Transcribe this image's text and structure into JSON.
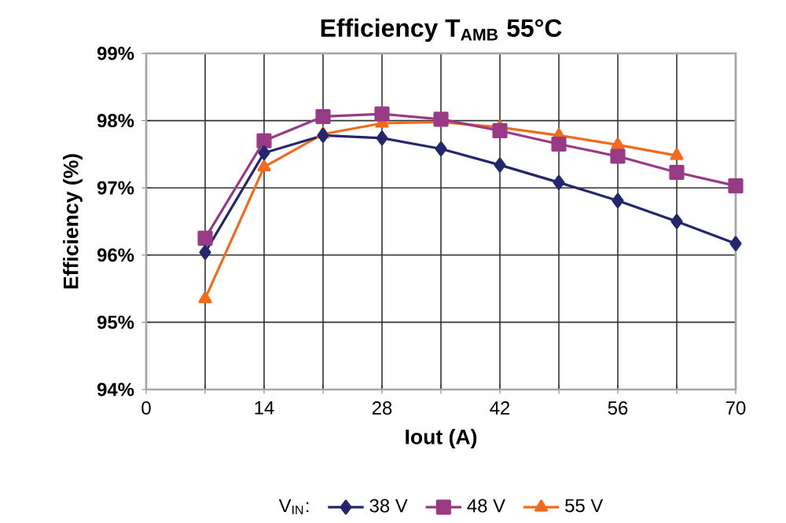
{
  "chart_data": {
    "type": "line",
    "title": "Efficiency T$_{AMB}$ 55°C",
    "xlabel": "Iout (A)",
    "ylabel": "Efficiency (%)",
    "legend_title": "V$_{IN}$:",
    "x": [
      7,
      14,
      21,
      28,
      35,
      42,
      49,
      56,
      63,
      70
    ],
    "series": [
      {
        "name": "38 V",
        "color": "#25276e",
        "marker": "diamond",
        "values": [
          96.04,
          97.52,
          97.78,
          97.74,
          97.58,
          97.34,
          97.08,
          96.81,
          96.5,
          96.17
        ]
      },
      {
        "name": "48 V",
        "color": "#993a86",
        "marker": "square",
        "values": [
          96.25,
          97.7,
          98.06,
          98.1,
          98.02,
          97.85,
          97.65,
          97.47,
          97.23,
          97.03
        ]
      },
      {
        "name": "55 V",
        "color": "#f26b1d",
        "marker": "triangle",
        "values": [
          95.35,
          97.31,
          97.8,
          97.96,
          97.98,
          97.9,
          97.78,
          97.64,
          97.48,
          null
        ]
      }
    ],
    "xlim": [
      0,
      70
    ],
    "ylim": [
      94,
      99
    ],
    "xticks": [
      0,
      {
        "value": 7,
        "label": null
      },
      14,
      {
        "value": 21,
        "label": null
      },
      28,
      {
        "value": 35,
        "label": null
      },
      42,
      {
        "value": 49,
        "label": null
      },
      56,
      {
        "value": 63,
        "label": null
      },
      70
    ],
    "yticks": [
      {
        "value": 94,
        "label": "94%"
      },
      {
        "value": 95,
        "label": "95%"
      },
      {
        "value": 96,
        "label": "96%"
      },
      {
        "value": 97,
        "label": "97%"
      },
      {
        "value": 98,
        "label": "98%"
      },
      {
        "value": 99,
        "label": "99%"
      }
    ],
    "grid": true,
    "legend": "bottom",
    "line_style": "solid"
  }
}
